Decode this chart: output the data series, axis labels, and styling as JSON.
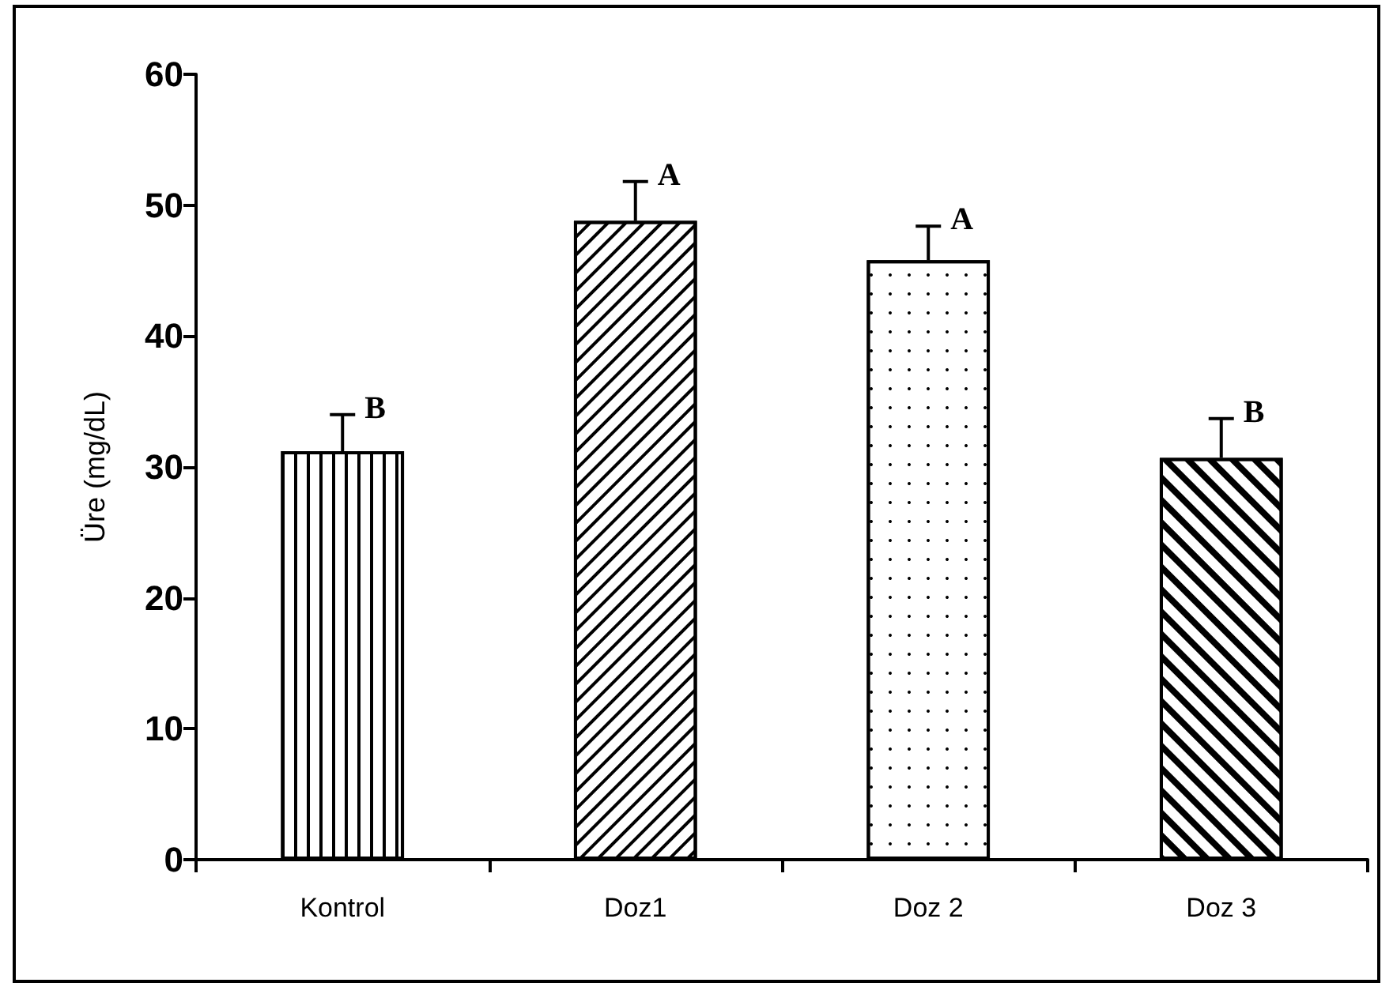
{
  "chart_data": {
    "type": "bar",
    "ylabel": "Üre (mg/dL)",
    "categories": [
      "Kontrol",
      "Doz1",
      "Doz 2",
      "Doz 3"
    ],
    "values": [
      31.2,
      48.8,
      45.8,
      30.7
    ],
    "errors": [
      2.8,
      3.0,
      2.6,
      3.0
    ],
    "color": "#000000",
    "ylim": [
      0,
      60
    ],
    "yticks": [
      0,
      10,
      20,
      30,
      40,
      50,
      60
    ],
    "grid": false,
    "annotations": [
      {
        "text": "B",
        "x": "Kontrol",
        "y": 34.0
      },
      {
        "text": "A",
        "x": "Doz1",
        "y": 51.8
      },
      {
        "text": "A",
        "x": "Doz 2",
        "y": 48.4
      },
      {
        "text": "B",
        "x": "Doz 3",
        "y": 33.7
      }
    ]
  }
}
